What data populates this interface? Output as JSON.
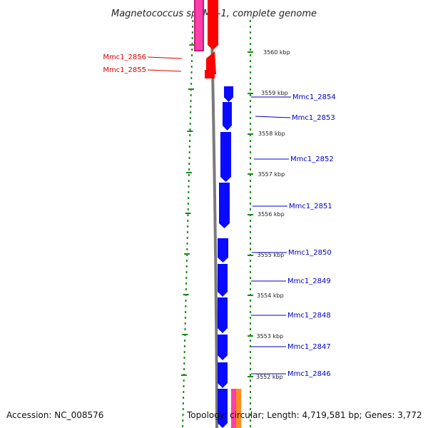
{
  "title": "Magnetococcus sp. MC-1, complete genome",
  "accession": "Accession: NC_008576",
  "topology": "Topology: circular; Length: 4,719,581 bp; Genes: 3,772",
  "colors": {
    "forward_gene": "#0a0aff",
    "reverse_gene": "#ff0000",
    "backbone": "#7a7a7a",
    "tick": "#1a8a1a",
    "label_red": "#dd0000",
    "label_blue": "#0000cc",
    "pink": "#ff3fa8",
    "magenta": "#c8187e",
    "orange": "#ff8c1a"
  },
  "scale_labels": [
    "3560 kbp",
    "3559 kbp",
    "3558 kbp",
    "3557 kbp",
    "3556 kbp",
    "3555 kbp",
    "3554 kbp",
    "3553 kbp",
    "3552 kbp"
  ],
  "gene_labels_left": [
    "Mmc1_2856",
    "Mmc1_2855"
  ],
  "gene_labels_right": [
    "Mmc1_2854",
    "Mmc1_2853",
    "Mmc1_2852",
    "Mmc1_2851",
    "Mmc1_2850",
    "Mmc1_2849",
    "Mmc1_2848",
    "Mmc1_2847",
    "Mmc1_2846"
  ]
}
